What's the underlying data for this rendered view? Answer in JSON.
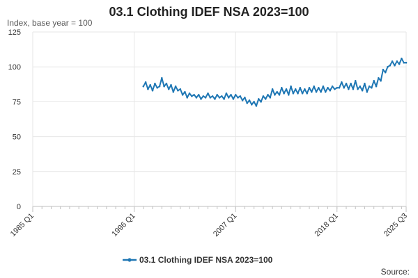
{
  "chart_data": {
    "type": "line",
    "title": "03.1 Clothing IDEF NSA 2023=100",
    "ylabel": "Index, base year = 100",
    "xlabel": "",
    "ylim": [
      0,
      125
    ],
    "yticks": [
      0,
      25,
      50,
      75,
      100,
      125
    ],
    "x_range": [
      1985.0,
      2025.5
    ],
    "xticks": [
      {
        "label": "1985 Q1",
        "value": 1985.0
      },
      {
        "label": "1996 Q1",
        "value": 1996.0
      },
      {
        "label": "2007 Q1",
        "value": 2007.0
      },
      {
        "label": "2018 Q1",
        "value": 2018.0
      },
      {
        "label": "2025 Q3",
        "value": 2025.5
      }
    ],
    "grid": true,
    "legend_position": "bottom-center",
    "series": [
      {
        "name": "03.1 Clothing IDEF NSA 2023=100",
        "color": "#1f77b4",
        "x": [
          1997.0,
          1997.25,
          1997.5,
          1997.75,
          1998.0,
          1998.25,
          1998.5,
          1998.75,
          1999.0,
          1999.25,
          1999.5,
          1999.75,
          2000.0,
          2000.25,
          2000.5,
          2000.75,
          2001.0,
          2001.25,
          2001.5,
          2001.75,
          2002.0,
          2002.25,
          2002.5,
          2002.75,
          2003.0,
          2003.25,
          2003.5,
          2003.75,
          2004.0,
          2004.25,
          2004.5,
          2004.75,
          2005.0,
          2005.25,
          2005.5,
          2005.75,
          2006.0,
          2006.25,
          2006.5,
          2006.75,
          2007.0,
          2007.25,
          2007.5,
          2007.75,
          2008.0,
          2008.25,
          2008.5,
          2008.75,
          2009.0,
          2009.25,
          2009.5,
          2009.75,
          2010.0,
          2010.25,
          2010.5,
          2010.75,
          2011.0,
          2011.25,
          2011.5,
          2011.75,
          2012.0,
          2012.25,
          2012.5,
          2012.75,
          2013.0,
          2013.25,
          2013.5,
          2013.75,
          2014.0,
          2014.25,
          2014.5,
          2014.75,
          2015.0,
          2015.25,
          2015.5,
          2015.75,
          2016.0,
          2016.25,
          2016.5,
          2016.75,
          2017.0,
          2017.25,
          2017.5,
          2017.75,
          2018.0,
          2018.25,
          2018.5,
          2018.75,
          2019.0,
          2019.25,
          2019.5,
          2019.75,
          2020.0,
          2020.25,
          2020.5,
          2020.75,
          2021.0,
          2021.25,
          2021.5,
          2021.75,
          2022.0,
          2022.25,
          2022.5,
          2022.75,
          2023.0,
          2023.25,
          2023.5,
          2023.75,
          2024.0,
          2024.25,
          2024.5,
          2024.75,
          2025.0,
          2025.25,
          2025.5
        ],
        "values": [
          86,
          89,
          84,
          87,
          83,
          88,
          85,
          86,
          92,
          86,
          88,
          84,
          87,
          82,
          86,
          83,
          84,
          80,
          82,
          78,
          81,
          79,
          80,
          78,
          80,
          77,
          79,
          78,
          81,
          78,
          79,
          77,
          80,
          78,
          79,
          77,
          81,
          78,
          80,
          77,
          80,
          78,
          79,
          76,
          78,
          74,
          76,
          73,
          75,
          72,
          77,
          75,
          79,
          77,
          80,
          78,
          84,
          80,
          82,
          80,
          85,
          81,
          84,
          80,
          86,
          81,
          84,
          81,
          85,
          81,
          84,
          81,
          85,
          82,
          86,
          82,
          85,
          82,
          86,
          82,
          85,
          83,
          86,
          84,
          85,
          85,
          89,
          85,
          88,
          84,
          88,
          84,
          90,
          84,
          86,
          83,
          88,
          82,
          86,
          85,
          90,
          86,
          92,
          90,
          98,
          96,
          100,
          101,
          104,
          101,
          104,
          102,
          106,
          103,
          103
        ]
      }
    ]
  },
  "footer": {
    "source_label": "Source:"
  }
}
